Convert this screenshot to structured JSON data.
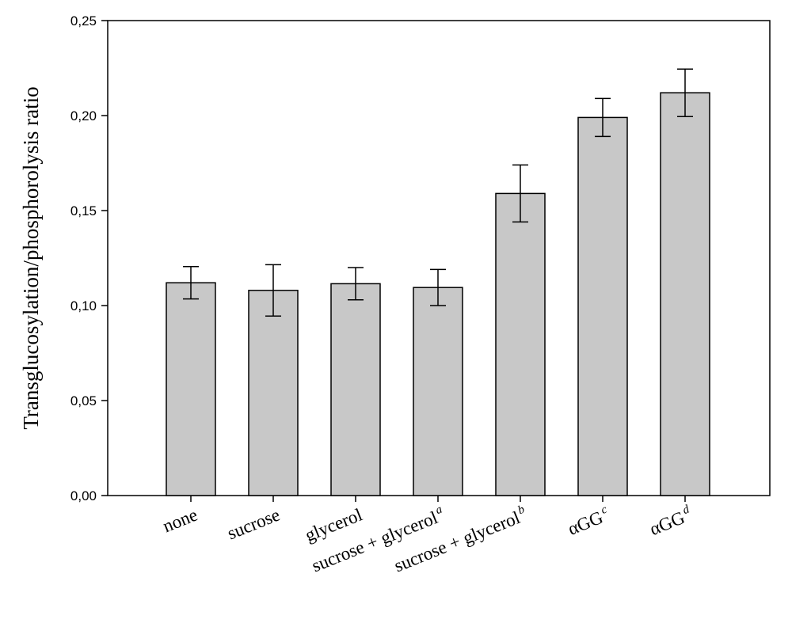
{
  "chart_data": {
    "type": "bar",
    "title": "",
    "xlabel": "",
    "ylabel": "Transglucosylation/phosphorolysis ratio",
    "ylim": [
      0,
      0.25
    ],
    "yticks": [
      0.0,
      0.05,
      0.1,
      0.15,
      0.2,
      0.25
    ],
    "ytick_labels": [
      "0,00",
      "0,05",
      "0,10",
      "0,15",
      "0,20",
      "0,25"
    ],
    "grid": false,
    "legend": "none",
    "bar_color": "#c8c8c8",
    "categories": [
      {
        "label": "none",
        "sup": ""
      },
      {
        "label": "sucrose",
        "sup": ""
      },
      {
        "label": "glycerol",
        "sup": ""
      },
      {
        "label": "sucrose + glycerol",
        "sup": "a"
      },
      {
        "label": "sucrose + glycerol",
        "sup": "b"
      },
      {
        "label": "αGG",
        "sup": "c"
      },
      {
        "label": "αGG",
        "sup": "d"
      }
    ],
    "values": [
      0.112,
      0.108,
      0.1115,
      0.1095,
      0.159,
      0.199,
      0.212
    ],
    "errors": [
      0.0085,
      0.0135,
      0.0085,
      0.0095,
      0.015,
      0.01,
      0.0125
    ]
  }
}
